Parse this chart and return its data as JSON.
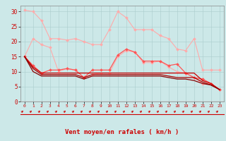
{
  "x": [
    0,
    1,
    2,
    3,
    4,
    5,
    6,
    7,
    8,
    9,
    10,
    11,
    12,
    13,
    14,
    15,
    16,
    17,
    18,
    19,
    20,
    21,
    22,
    23
  ],
  "series": [
    {
      "name": "rafales_max_upper",
      "color": "#ffaaaa",
      "linewidth": 0.8,
      "marker": "D",
      "markersize": 2,
      "values": [
        30.5,
        30,
        27,
        21,
        21,
        20.5,
        21,
        20,
        19,
        19,
        24,
        30,
        28,
        24,
        24,
        24,
        22,
        21,
        17.5,
        17,
        21,
        10.5,
        10.5,
        10.5
      ]
    },
    {
      "name": "rafales_mid",
      "color": "#ffaaaa",
      "linewidth": 0.8,
      "marker": "D",
      "markersize": 2,
      "values": [
        15,
        21,
        19,
        18,
        10,
        11,
        10.5,
        8,
        9,
        9.5,
        9.5,
        15,
        17,
        16.5,
        13,
        13,
        13.5,
        11.5,
        10,
        9.5,
        8,
        6,
        6,
        4
      ]
    },
    {
      "name": "vent_max_marker",
      "color": "#ff5555",
      "linewidth": 0.9,
      "marker": "D",
      "markersize": 2,
      "values": [
        15,
        12,
        9.5,
        10.5,
        10.5,
        11,
        10.5,
        8,
        10.5,
        10.5,
        10.5,
        15.5,
        17.5,
        16.5,
        13.5,
        13.5,
        13.5,
        12,
        12.5,
        9.5,
        8,
        7.5,
        6,
        4
      ]
    },
    {
      "name": "vent_moyen_flat1",
      "color": "#cc0000",
      "linewidth": 0.9,
      "marker": null,
      "markersize": 0,
      "values": [
        15,
        11.5,
        9.5,
        9.5,
        9.5,
        9.5,
        9.5,
        9.5,
        9.5,
        9.5,
        9.5,
        9.5,
        9.5,
        9.5,
        9.5,
        9.5,
        9.5,
        9.5,
        9.5,
        9.5,
        9.5,
        7.0,
        6.0,
        4.0
      ]
    },
    {
      "name": "vent_moyen_flat2",
      "color": "#aa0000",
      "linewidth": 0.9,
      "marker": null,
      "markersize": 0,
      "values": [
        15,
        11,
        9.0,
        9.0,
        9.0,
        9.0,
        9.0,
        8.0,
        9.0,
        9.0,
        9.0,
        9.0,
        9.0,
        9.0,
        9.0,
        9.0,
        9.0,
        8.5,
        8.0,
        8.0,
        8.0,
        6.5,
        5.5,
        4.0
      ]
    },
    {
      "name": "vent_moyen_flat3",
      "color": "#880000",
      "linewidth": 0.9,
      "marker": null,
      "markersize": 0,
      "values": [
        15,
        10,
        8.5,
        8.5,
        8.5,
        8.5,
        8.5,
        7.5,
        8.5,
        8.5,
        8.5,
        8.5,
        8.5,
        8.5,
        8.5,
        8.5,
        8.5,
        8.0,
        7.5,
        7.5,
        7.0,
        6.0,
        5.5,
        4.0
      ]
    }
  ],
  "ylim": [
    0,
    32
  ],
  "yticks": [
    0,
    5,
    10,
    15,
    20,
    25,
    30
  ],
  "xlabel": "Vent moyen/en rafales ( km/h )",
  "xlabel_color": "#cc0000",
  "background_color": "#cce8e8",
  "grid_color": "#aacccc",
  "tick_color": "#cc0000",
  "spine_color": "#888888"
}
